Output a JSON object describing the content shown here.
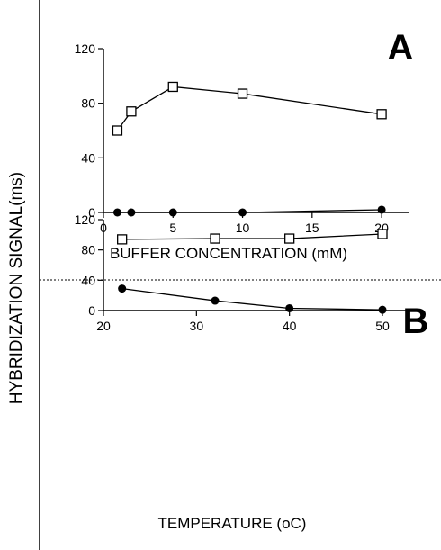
{
  "figure": {
    "y_axis_title": "HYBRIDIZATION SIGNAL(ms)"
  },
  "chart_data": [
    {
      "type": "line",
      "panel_label": "A",
      "xlabel": "BUFFER CONCENTRATION (mM)",
      "ylabel": "",
      "xlim": [
        0,
        22
      ],
      "ylim": [
        0,
        120
      ],
      "x_ticks": [
        0,
        5,
        10,
        15,
        20
      ],
      "y_ticks": [
        0,
        40,
        80,
        120
      ],
      "grid": false,
      "series": [
        {
          "marker": "open-square",
          "color": "#000000",
          "x": [
            1,
            2,
            5,
            10,
            20
          ],
          "y": [
            60,
            74,
            92,
            87,
            72
          ]
        },
        {
          "marker": "filled-circle",
          "color": "#000000",
          "x": [
            1,
            2,
            5,
            10,
            20
          ],
          "y": [
            0,
            0,
            0,
            0,
            2
          ]
        }
      ]
    },
    {
      "type": "line",
      "panel_label": "B",
      "xlabel": "TEMPERATURE (oC)",
      "ylabel": "",
      "xlim": [
        20,
        53
      ],
      "ylim": [
        0,
        120
      ],
      "x_ticks": [
        20,
        30,
        40,
        50
      ],
      "y_ticks": [
        0,
        40,
        80,
        120
      ],
      "grid": false,
      "series": [
        {
          "marker": "open-square",
          "color": "#000000",
          "x": [
            22,
            32,
            40,
            50
          ],
          "y": [
            94,
            95,
            95,
            101
          ]
        },
        {
          "marker": "filled-circle",
          "color": "#000000",
          "x": [
            22,
            32,
            40,
            50
          ],
          "y": [
            29,
            13,
            3,
            1
          ]
        }
      ]
    }
  ]
}
